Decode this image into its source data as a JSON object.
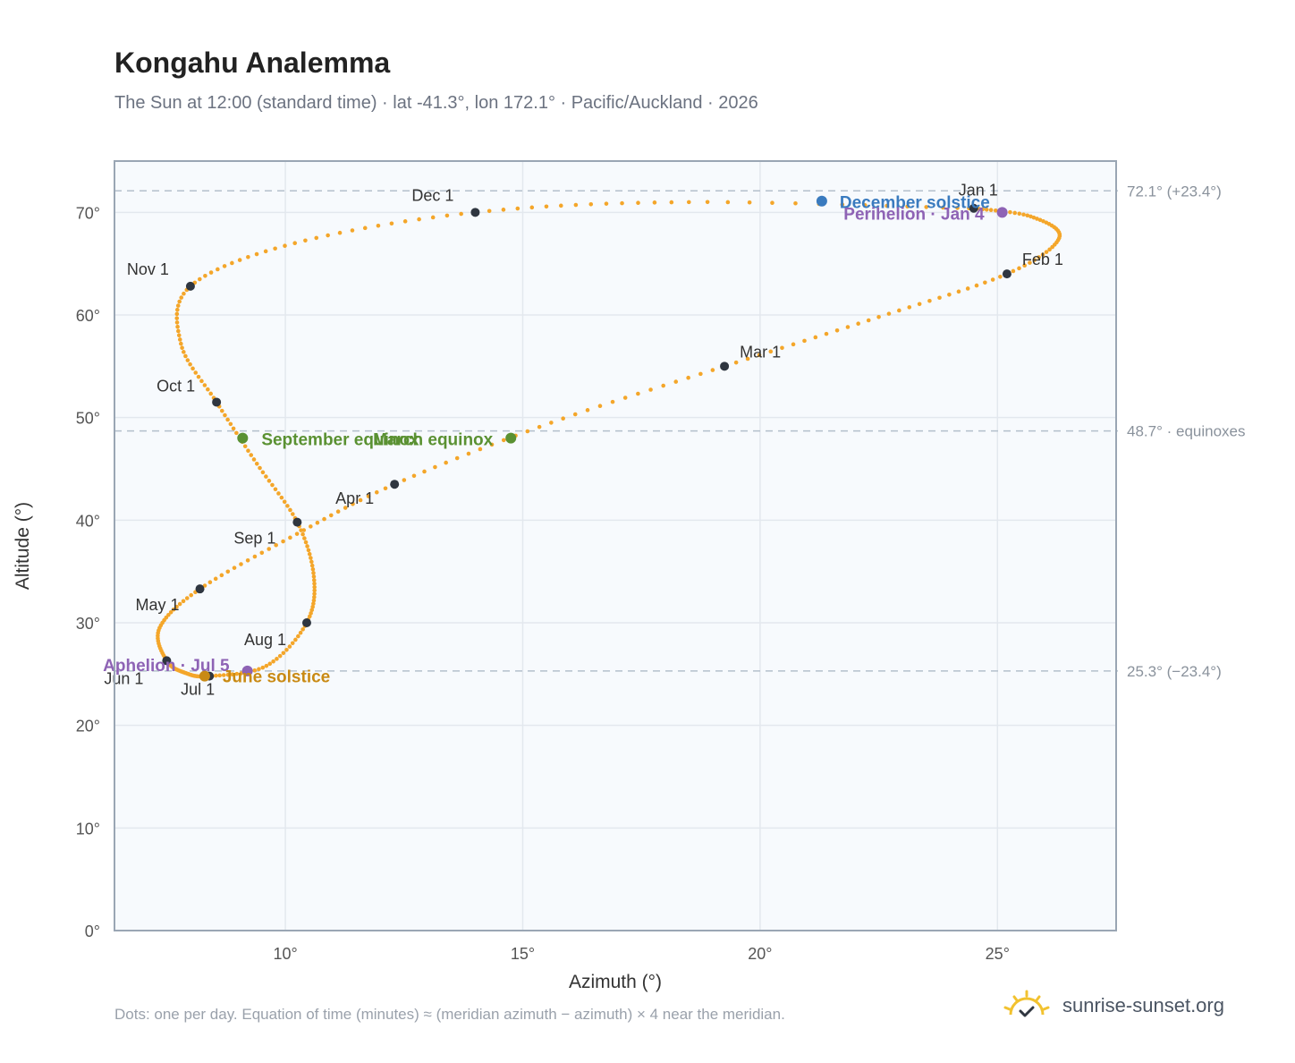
{
  "header": {
    "title": "Kongahu Analemma",
    "subtitle": "The Sun at 12:00 (standard time) · lat -41.3°, lon 172.1° · Pacific/Auckland · 2026"
  },
  "footer": {
    "note": "Dots: one per day. Equation of time (minutes) ≈ (meridian azimuth − azimuth) × 4 near the meridian.",
    "brand": "sunrise-sunset.org"
  },
  "chart_data": {
    "type": "scatter",
    "xlabel": "Azimuth (°)",
    "ylabel": "Altitude (°)",
    "xlim": [
      6.4,
      27.5
    ],
    "ylim": [
      0,
      75
    ],
    "xticks": [
      10,
      15,
      20,
      25
    ],
    "yticks": [
      0,
      10,
      20,
      30,
      40,
      50,
      60,
      70
    ],
    "xtick_labels": [
      "10°",
      "15°",
      "20°",
      "25°"
    ],
    "ytick_labels": [
      "0°",
      "10°",
      "20°",
      "30°",
      "40°",
      "50°",
      "60°",
      "70°"
    ],
    "grid": true,
    "reference_lines": [
      {
        "y": 72.1,
        "label": "72.1° (+23.4°)"
      },
      {
        "y": 48.7,
        "label": "48.7° · equinoxes"
      },
      {
        "y": 25.3,
        "label": "25.3° (−23.4°)"
      }
    ],
    "month_markers": [
      {
        "label": "Jan 1",
        "x": 24.5,
        "y": 70.4
      },
      {
        "label": "Feb 1",
        "x": 25.2,
        "y": 64.0
      },
      {
        "label": "Mar 1",
        "x": 19.25,
        "y": 55.0
      },
      {
        "label": "Apr 1",
        "x": 12.3,
        "y": 43.5
      },
      {
        "label": "May 1",
        "x": 8.2,
        "y": 33.3
      },
      {
        "label": "Jun 1",
        "x": 7.5,
        "y": 26.3
      },
      {
        "label": "Jul 1",
        "x": 8.4,
        "y": 24.8
      },
      {
        "label": "Aug 1",
        "x": 10.45,
        "y": 30.0
      },
      {
        "label": "Sep 1",
        "x": 10.25,
        "y": 39.8
      },
      {
        "label": "Oct 1",
        "x": 8.55,
        "y": 51.5
      },
      {
        "label": "Nov 1",
        "x": 8.0,
        "y": 62.8
      },
      {
        "label": "Dec 1",
        "x": 14.0,
        "y": 70.0
      }
    ],
    "events": [
      {
        "label": "December solstice",
        "x": 21.3,
        "y": 71.1,
        "color": "#3a7bbf"
      },
      {
        "label": "Perihelion · Jan 4",
        "x": 25.1,
        "y": 70.0,
        "color": "#8e63b5"
      },
      {
        "label": "September equinox",
        "x": 9.1,
        "y": 48.0,
        "color": "#5a9132"
      },
      {
        "label": "March equinox",
        "x": 14.75,
        "y": 48.0,
        "color": "#5a9132"
      },
      {
        "label": "Aphelion · Jul 5",
        "x": 9.2,
        "y": 25.3,
        "color": "#8e63b5"
      },
      {
        "label": "June solstice",
        "x": 8.3,
        "y": 24.8,
        "color": "#c98a14"
      }
    ],
    "path_keypoints": [
      {
        "date": "Jan 1",
        "x": 24.5,
        "y": 70.4
      },
      {
        "date": "Jan 10",
        "x": 25.7,
        "y": 69.6
      },
      {
        "date": "Jan 20",
        "x": 26.3,
        "y": 67.5
      },
      {
        "date": "Feb 1",
        "x": 25.2,
        "y": 64.0
      },
      {
        "date": "Feb 15",
        "x": 22.5,
        "y": 59.8
      },
      {
        "date": "Mar 1",
        "x": 19.25,
        "y": 55.0
      },
      {
        "date": "Mar 15",
        "x": 15.6,
        "y": 49.5
      },
      {
        "date": "Apr 1",
        "x": 12.3,
        "y": 43.5
      },
      {
        "date": "Apr 15",
        "x": 10.1,
        "y": 38.3
      },
      {
        "date": "May 1",
        "x": 8.2,
        "y": 33.3
      },
      {
        "date": "May 15",
        "x": 7.35,
        "y": 29.5
      },
      {
        "date": "Jun 1",
        "x": 7.5,
        "y": 26.3
      },
      {
        "date": "Jun 15",
        "x": 7.9,
        "y": 25.1
      },
      {
        "date": "Jul 1",
        "x": 8.4,
        "y": 24.8
      },
      {
        "date": "Jul 15",
        "x": 9.6,
        "y": 25.8
      },
      {
        "date": "Aug 1",
        "x": 10.45,
        "y": 30.0
      },
      {
        "date": "Aug 15",
        "x": 10.6,
        "y": 34.5
      },
      {
        "date": "Sep 1",
        "x": 10.25,
        "y": 39.8
      },
      {
        "date": "Sep 15",
        "x": 9.4,
        "y": 45.5
      },
      {
        "date": "Oct 1",
        "x": 8.55,
        "y": 51.5
      },
      {
        "date": "Oct 15",
        "x": 7.8,
        "y": 57.2
      },
      {
        "date": "Nov 1",
        "x": 8.0,
        "y": 62.8
      },
      {
        "date": "Nov 15",
        "x": 10.2,
        "y": 67.0
      },
      {
        "date": "Dec 1",
        "x": 14.0,
        "y": 70.0
      },
      {
        "date": "Dec 15",
        "x": 18.5,
        "y": 71.0
      },
      {
        "date": "Dec 31",
        "x": 24.4,
        "y": 70.4
      }
    ]
  },
  "colors": {
    "path": "#f4a62a",
    "marker": "#2f3640",
    "grid": "#e3e8ee",
    "plot_bg": "#f7fafd",
    "frame": "#9aa6b4",
    "refline": "#b4c0cc",
    "axis_text": "#555555",
    "refline_text": "#8a929c",
    "brand_sun": "#f2c230"
  }
}
